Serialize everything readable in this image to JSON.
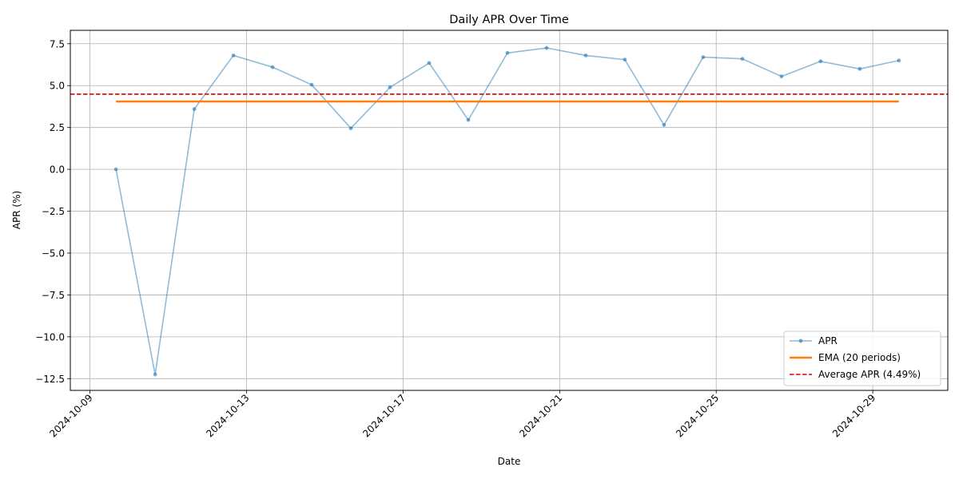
{
  "chart_data": {
    "type": "line",
    "title": "Daily APR Over Time",
    "xlabel": "Date",
    "ylabel": "APR (%)",
    "grid": true,
    "legend_position": "lower-right",
    "x_ticks": [
      "2024-10-09",
      "2024-10-13",
      "2024-10-17",
      "2024-10-21",
      "2024-10-25",
      "2024-10-29"
    ],
    "y_ticks": [
      "7.5",
      "5.0",
      "2.5",
      "0.0",
      "−2.5",
      "−5.0",
      "−7.5",
      "−10.0",
      "−12.5"
    ],
    "ylim": [
      -13.2,
      8.3
    ],
    "xlim": [
      "2024-10-08T12:00",
      "2024-10-30T22:00"
    ],
    "dates": [
      "2024-10-09T16:00",
      "2024-10-10T16:00",
      "2024-10-11T16:00",
      "2024-10-12T16:00",
      "2024-10-13T16:00",
      "2024-10-14T16:00",
      "2024-10-15T16:00",
      "2024-10-16T16:00",
      "2024-10-17T16:00",
      "2024-10-18T16:00",
      "2024-10-19T16:00",
      "2024-10-20T16:00",
      "2024-10-21T16:00",
      "2024-10-22T16:00",
      "2024-10-23T16:00",
      "2024-10-24T16:00",
      "2024-10-25T16:00",
      "2024-10-26T16:00",
      "2024-10-27T16:00",
      "2024-10-28T16:00",
      "2024-10-29T16:00"
    ],
    "series": [
      {
        "name": "APR",
        "color": "#1f77b4",
        "style": "line-markers",
        "values": [
          0.0,
          -12.25,
          3.6,
          6.8,
          6.1,
          5.05,
          2.45,
          4.9,
          6.35,
          2.95,
          6.95,
          7.25,
          6.8,
          6.55,
          2.65,
          6.7,
          6.6,
          5.55,
          6.45,
          6.0,
          6.5
        ]
      },
      {
        "name": "EMA (20 periods)",
        "color": "#ff7f0e",
        "style": "solid",
        "values": [
          4.05,
          4.05,
          4.05,
          4.05,
          4.05,
          4.05,
          4.05,
          4.05,
          4.05,
          4.05,
          4.05,
          4.05,
          4.05,
          4.05,
          4.05,
          4.05,
          4.05,
          4.05,
          4.05,
          4.05,
          4.05
        ]
      }
    ],
    "hlines": [
      {
        "name": "Average APR (4.49%)",
        "value": 4.49,
        "color": "#e60000",
        "style": "dashed"
      }
    ]
  }
}
